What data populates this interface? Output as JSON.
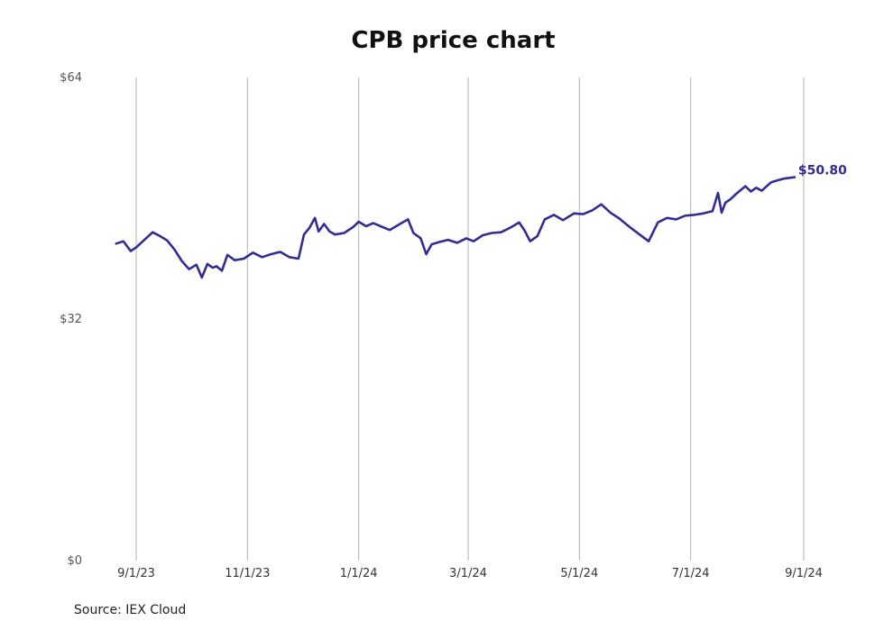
{
  "chart_data": {
    "type": "line",
    "title": "CPB price chart",
    "source": "Source: IEX Cloud",
    "y_tick_labels": [
      "$0",
      "$32",
      "$64"
    ],
    "y_ticks": [
      0,
      32,
      64
    ],
    "ylim": [
      0,
      64
    ],
    "x_tick_labels": [
      "9/1/23",
      "11/1/23",
      "1/1/24",
      "3/1/24",
      "5/1/24",
      "7/1/24",
      "9/1/24"
    ],
    "x_ticks": [
      "2023-09-01",
      "2023-11-01",
      "2024-01-01",
      "2024-03-01",
      "2024-05-01",
      "2024-07-01",
      "2024-09-01"
    ],
    "xlim": [
      "2023-08-21",
      "2024-09-02"
    ],
    "grid": "vertical",
    "color": "#332d93",
    "end_label": "$50.80",
    "series": [
      {
        "x": [
          "2023-08-21",
          "2023-08-25",
          "2023-08-29",
          "2023-09-01",
          "2023-09-06",
          "2023-09-10",
          "2023-09-14",
          "2023-09-18",
          "2023-09-22",
          "2023-09-26",
          "2023-09-30",
          "2023-10-04",
          "2023-10-07",
          "2023-10-10",
          "2023-10-13",
          "2023-10-15",
          "2023-10-18",
          "2023-10-21",
          "2023-10-25",
          "2023-10-30",
          "2023-11-04",
          "2023-11-09",
          "2023-11-14",
          "2023-11-19",
          "2023-11-24",
          "2023-11-29",
          "2023-12-02",
          "2023-12-05",
          "2023-12-08",
          "2023-12-10",
          "2023-12-13",
          "2023-12-16",
          "2023-12-19",
          "2023-12-24",
          "2023-12-29",
          "2024-01-01",
          "2024-01-05",
          "2024-01-09",
          "2024-01-13",
          "2024-01-18",
          "2024-01-23",
          "2024-01-28",
          "2024-01-31",
          "2024-02-04",
          "2024-02-07",
          "2024-02-10",
          "2024-02-14",
          "2024-02-19",
          "2024-02-24",
          "2024-02-29",
          "2024-03-04",
          "2024-03-09",
          "2024-03-14",
          "2024-03-19",
          "2024-03-24",
          "2024-03-29",
          "2024-04-01",
          "2024-04-04",
          "2024-04-08",
          "2024-04-12",
          "2024-04-17",
          "2024-04-22",
          "2024-04-28",
          "2024-05-03",
          "2024-05-08",
          "2024-05-13",
          "2024-05-18",
          "2024-05-23",
          "2024-05-28",
          "2024-06-03",
          "2024-06-08",
          "2024-06-13",
          "2024-06-18",
          "2024-06-23",
          "2024-06-28",
          "2024-07-03",
          "2024-07-08",
          "2024-07-13",
          "2024-07-16",
          "2024-07-18",
          "2024-07-20",
          "2024-07-23",
          "2024-07-26",
          "2024-07-31",
          "2024-08-03",
          "2024-08-06",
          "2024-08-09",
          "2024-08-14",
          "2024-08-18",
          "2024-08-21",
          "2024-08-24",
          "2024-08-27"
        ],
        "values": [
          42.0,
          42.3,
          41.0,
          41.5,
          42.6,
          43.5,
          43.0,
          42.4,
          41.2,
          39.7,
          38.6,
          39.2,
          37.5,
          39.3,
          38.8,
          39.0,
          38.4,
          40.5,
          39.8,
          40.0,
          40.8,
          40.2,
          40.6,
          40.9,
          40.2,
          40.0,
          43.2,
          44.1,
          45.4,
          43.6,
          44.6,
          43.6,
          43.2,
          43.4,
          44.2,
          44.9,
          44.3,
          44.7,
          44.3,
          43.8,
          44.5,
          45.2,
          43.4,
          42.7,
          40.6,
          41.9,
          42.2,
          42.5,
          42.1,
          42.7,
          42.3,
          43.1,
          43.4,
          43.5,
          44.1,
          44.8,
          43.7,
          42.3,
          43.0,
          45.2,
          45.8,
          45.1,
          46.0,
          45.9,
          46.4,
          47.2,
          46.1,
          45.3,
          44.3,
          43.2,
          42.3,
          44.8,
          45.4,
          45.2,
          45.7,
          45.8,
          46.0,
          46.3,
          48.7,
          46.1,
          47.4,
          47.9,
          48.6,
          49.6,
          48.9,
          49.4,
          49.0,
          50.1,
          50.4,
          50.6,
          50.7,
          50.8
        ]
      }
    ]
  }
}
